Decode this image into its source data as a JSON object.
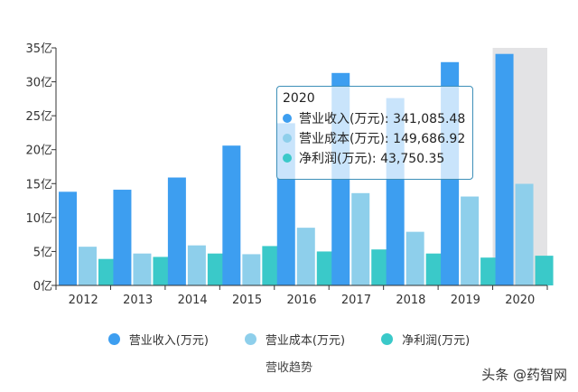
{
  "chart_data": {
    "type": "bar",
    "title": "营收趋势",
    "categories": [
      "2012",
      "2013",
      "2014",
      "2015",
      "2016",
      "2017",
      "2018",
      "2019",
      "2020"
    ],
    "y_ticks": [
      "0亿",
      "5亿",
      "10亿",
      "15亿",
      "20亿",
      "25亿",
      "30亿",
      "35亿"
    ],
    "ylim": [
      0,
      350000
    ],
    "series": [
      {
        "name": "营业收入(万元)",
        "color": "#3d9ef0",
        "values": [
          138000,
          141000,
          159000,
          206000,
          239000,
          313000,
          276000,
          329000,
          341085.48
        ]
      },
      {
        "name": "营业成本(万元)",
        "color": "#8ecfeb",
        "values": [
          57000,
          47000,
          59000,
          46000,
          85000,
          136000,
          79000,
          131000,
          149686.92
        ]
      },
      {
        "name": "净利润(万元)",
        "color": "#3ac9c9",
        "values": [
          39000,
          42000,
          47000,
          58000,
          50000,
          53000,
          47000,
          41000,
          43750.35
        ]
      }
    ],
    "highlight_index": 8,
    "legend_position": "bottom",
    "grid": false
  },
  "tooltip": {
    "title": "2020",
    "rows": [
      {
        "label": "营业收入(万元): 341,085.48",
        "color": "#3d9ef0"
      },
      {
        "label": "营业成本(万元): 149,686.92",
        "color": "#8ecfeb"
      },
      {
        "label": "净利润(万元): 43,750.35",
        "color": "#3ac9c9"
      }
    ]
  },
  "watermark": "头条 @药智网"
}
